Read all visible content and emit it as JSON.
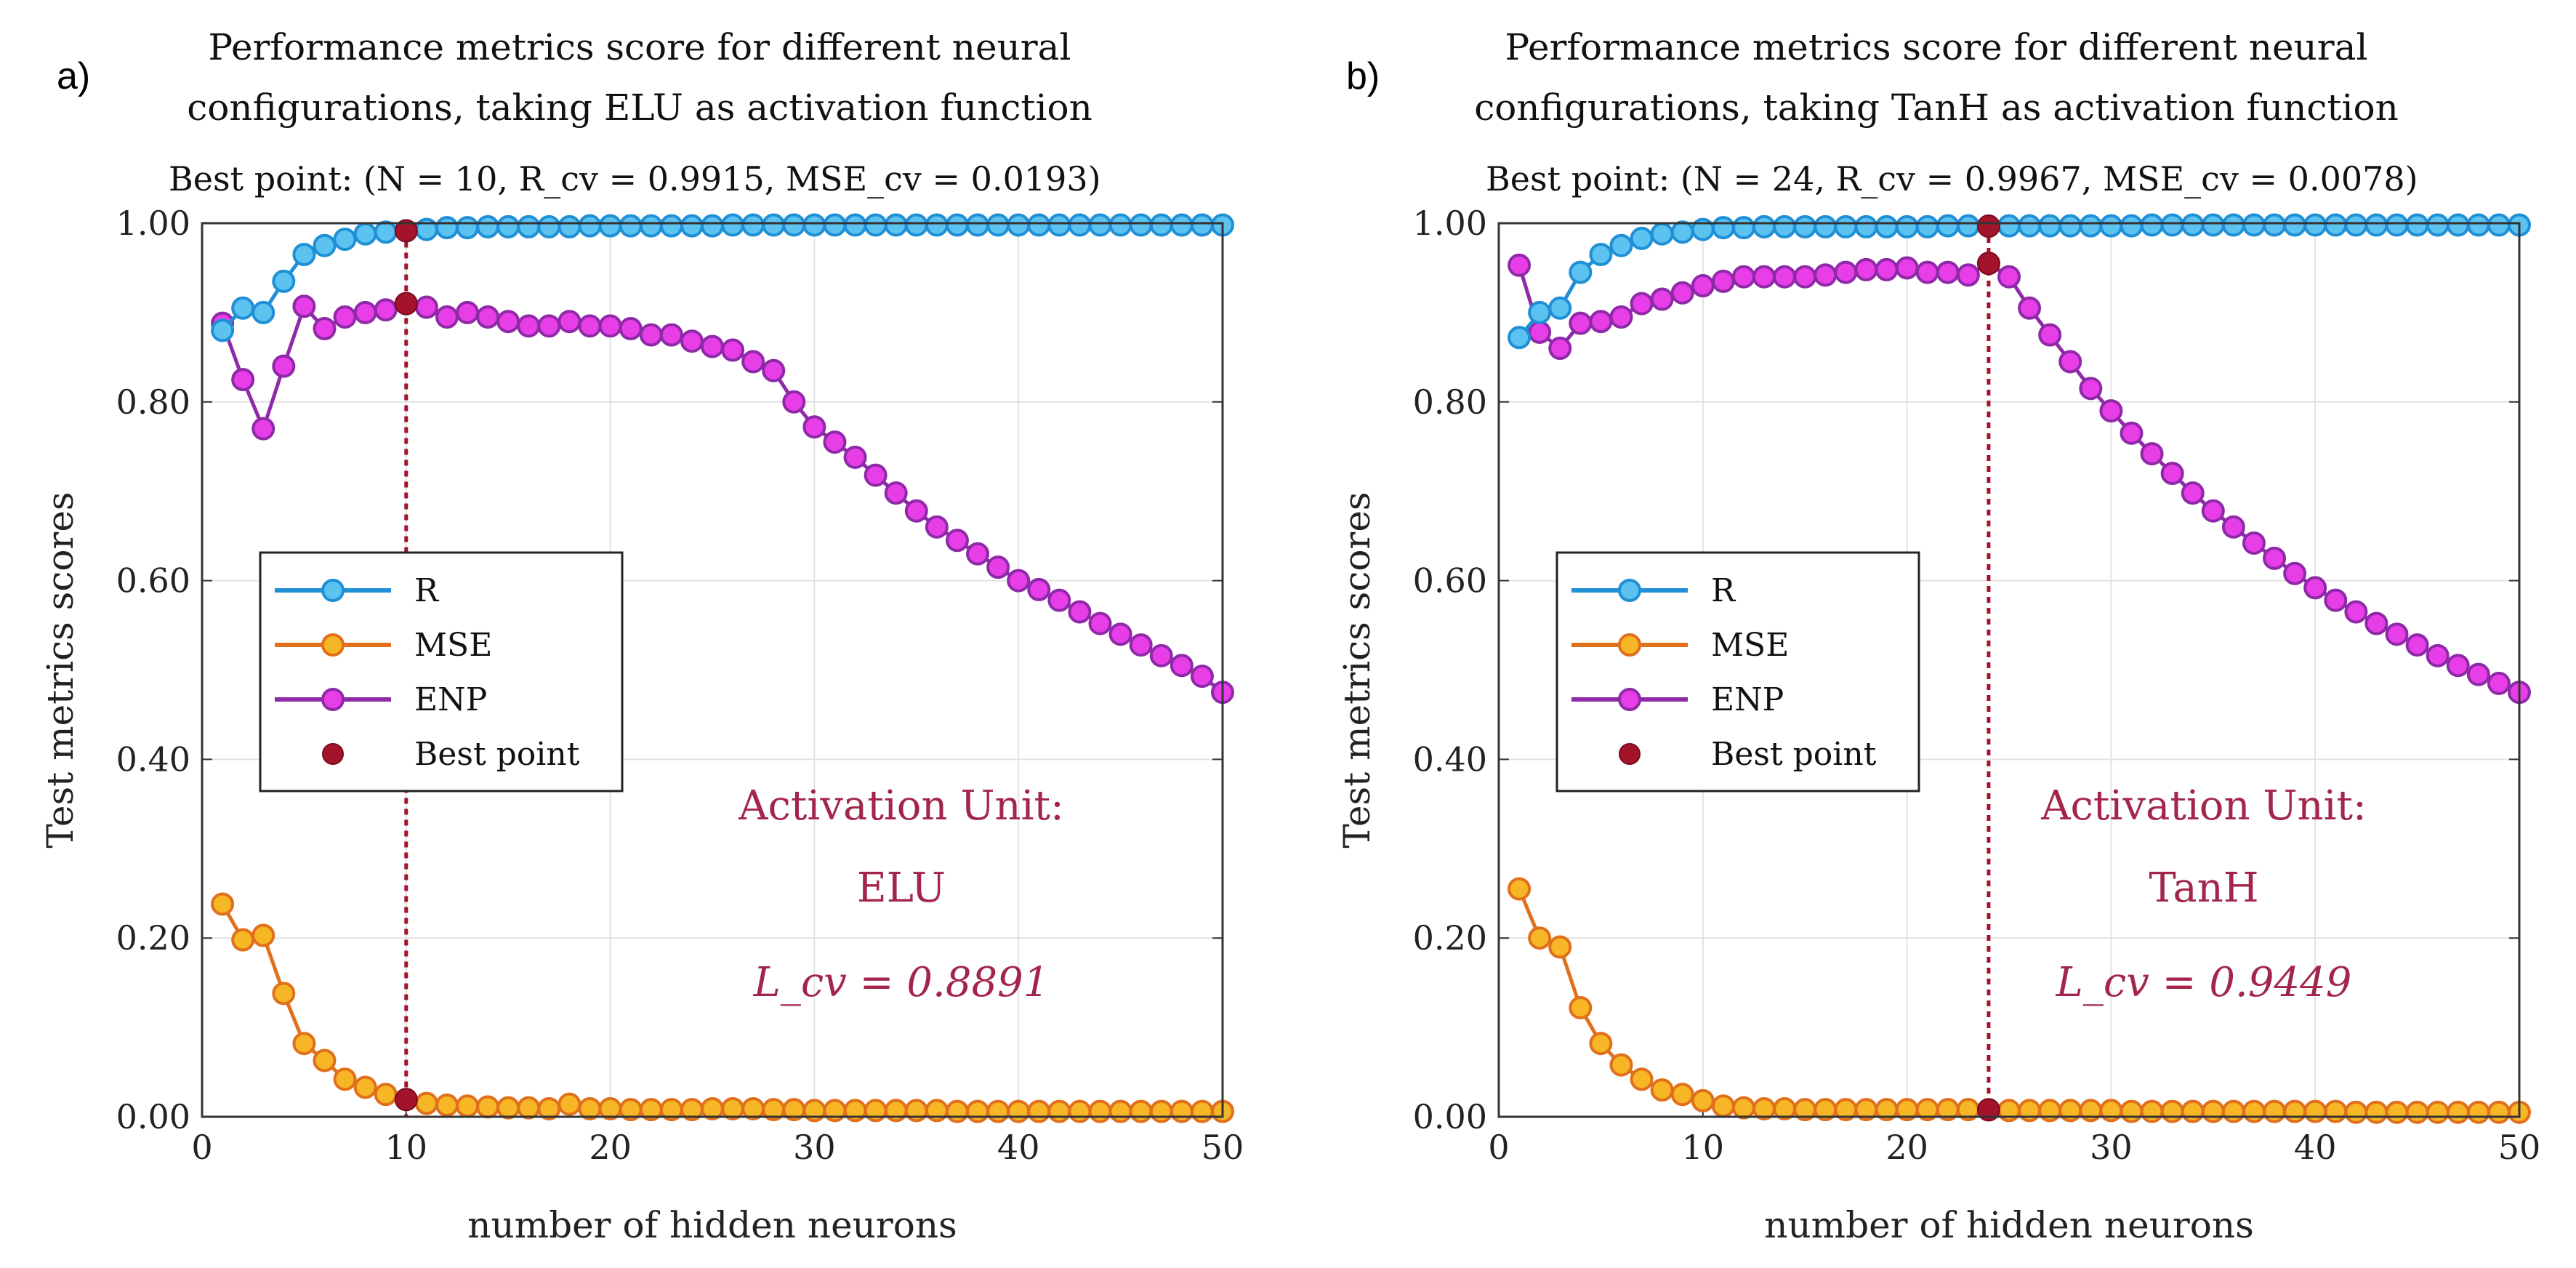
{
  "colors": {
    "R": "#1f8fd6",
    "R_marker": "#5cc2f0",
    "MSE": "#e0701c",
    "MSE_marker": "#f6b626",
    "ENP": "#8e2aa8",
    "ENP_marker": "#e83ee8",
    "best": "#a3142a",
    "annotation": "#a3264a"
  },
  "chart_data": [
    {
      "type": "line",
      "panel_label": "a)",
      "title_line1": "Performance metrics score for different neural",
      "title_line2": "configurations, taking ELU as activation function",
      "best_point_label": "Best point:  (N = 10, R_cv = 0.9915, MSE_cv = 0.0193)",
      "xlabel": "number of hidden neurons",
      "ylabel": "Test metrics scores",
      "xlim": [
        0,
        50
      ],
      "ylim": [
        0,
        1
      ],
      "xticks": [
        0,
        10,
        20,
        30,
        40,
        50
      ],
      "xtick_labels": [
        "0",
        "10",
        "20",
        "30",
        "40",
        "50"
      ],
      "yticks": [
        0,
        0.2,
        0.4,
        0.6,
        0.8,
        1.0
      ],
      "ytick_labels": [
        "0.00",
        "0.20",
        "0.40",
        "0.60",
        "0.80",
        "1.00"
      ],
      "grid": true,
      "legend": [
        "R",
        "MSE",
        "ENP",
        "Best point"
      ],
      "legend_position": "middle-left",
      "annotation": {
        "line1": "Activation Unit:",
        "line2": "ELU",
        "line3": "L_cv = 0.8891"
      },
      "best_point": {
        "x": 10,
        "values": [
          0.9915,
          0.91,
          0.0193
        ]
      },
      "x": [
        1,
        2,
        3,
        4,
        5,
        6,
        7,
        8,
        9,
        10,
        11,
        12,
        13,
        14,
        15,
        16,
        17,
        18,
        19,
        20,
        21,
        22,
        23,
        24,
        25,
        26,
        27,
        28,
        29,
        30,
        31,
        32,
        33,
        34,
        35,
        36,
        37,
        38,
        39,
        40,
        41,
        42,
        43,
        44,
        45,
        46,
        47,
        48,
        49,
        50
      ],
      "series": [
        {
          "name": "R",
          "values": [
            0.88,
            0.905,
            0.9,
            0.935,
            0.965,
            0.975,
            0.982,
            0.988,
            0.99,
            0.9915,
            0.993,
            0.995,
            0.995,
            0.996,
            0.996,
            0.996,
            0.996,
            0.996,
            0.997,
            0.997,
            0.997,
            0.997,
            0.997,
            0.997,
            0.997,
            0.998,
            0.998,
            0.998,
            0.998,
            0.998,
            0.998,
            0.998,
            0.998,
            0.998,
            0.998,
            0.998,
            0.998,
            0.998,
            0.998,
            0.998,
            0.998,
            0.998,
            0.998,
            0.998,
            0.998,
            0.998,
            0.998,
            0.998,
            0.998,
            0.998
          ]
        },
        {
          "name": "MSE",
          "values": [
            0.238,
            0.198,
            0.203,
            0.138,
            0.082,
            0.063,
            0.042,
            0.033,
            0.025,
            0.0193,
            0.015,
            0.013,
            0.012,
            0.011,
            0.01,
            0.01,
            0.009,
            0.014,
            0.009,
            0.009,
            0.008,
            0.008,
            0.008,
            0.008,
            0.009,
            0.009,
            0.009,
            0.008,
            0.008,
            0.007,
            0.007,
            0.007,
            0.007,
            0.007,
            0.007,
            0.007,
            0.006,
            0.006,
            0.006,
            0.006,
            0.006,
            0.006,
            0.006,
            0.006,
            0.006,
            0.006,
            0.006,
            0.006,
            0.006,
            0.006
          ]
        },
        {
          "name": "ENP",
          "values": [
            0.888,
            0.825,
            0.77,
            0.84,
            0.907,
            0.882,
            0.895,
            0.9,
            0.903,
            0.91,
            0.906,
            0.895,
            0.9,
            0.895,
            0.89,
            0.885,
            0.885,
            0.89,
            0.885,
            0.885,
            0.882,
            0.875,
            0.875,
            0.868,
            0.862,
            0.858,
            0.845,
            0.835,
            0.8,
            0.772,
            0.755,
            0.738,
            0.718,
            0.698,
            0.678,
            0.66,
            0.645,
            0.63,
            0.615,
            0.6,
            0.59,
            0.578,
            0.565,
            0.552,
            0.54,
            0.528,
            0.516,
            0.505,
            0.493,
            0.475
          ]
        }
      ]
    },
    {
      "type": "line",
      "panel_label": "b)",
      "title_line1": "Performance metrics score for different neural",
      "title_line2": "configurations, taking TanH as activation function",
      "best_point_label": "Best point:  (N = 24, R_cv = 0.9967, MSE_cv = 0.0078)",
      "xlabel": "number of hidden neurons",
      "ylabel": "Test metrics scores",
      "xlim": [
        0,
        50
      ],
      "ylim": [
        0,
        1
      ],
      "xticks": [
        0,
        10,
        20,
        30,
        40,
        50
      ],
      "xtick_labels": [
        "0",
        "10",
        "20",
        "30",
        "40",
        "50"
      ],
      "yticks": [
        0,
        0.2,
        0.4,
        0.6,
        0.8,
        1.0
      ],
      "ytick_labels": [
        "0.00",
        "0.20",
        "0.40",
        "0.60",
        "0.80",
        "1.00"
      ],
      "grid": true,
      "legend": [
        "R",
        "MSE",
        "ENP",
        "Best point"
      ],
      "legend_position": "middle-left",
      "annotation": {
        "line1": "Activation Unit:",
        "line2": "TanH",
        "line3": "L_cv = 0.9449"
      },
      "best_point": {
        "x": 24,
        "values": [
          0.9967,
          0.955,
          0.0078
        ]
      },
      "x": [
        1,
        2,
        3,
        4,
        5,
        6,
        7,
        8,
        9,
        10,
        11,
        12,
        13,
        14,
        15,
        16,
        17,
        18,
        19,
        20,
        21,
        22,
        23,
        24,
        25,
        26,
        27,
        28,
        29,
        30,
        31,
        32,
        33,
        34,
        35,
        36,
        37,
        38,
        39,
        40,
        41,
        42,
        43,
        44,
        45,
        46,
        47,
        48,
        49,
        50
      ],
      "series": [
        {
          "name": "R",
          "values": [
            0.872,
            0.9,
            0.905,
            0.945,
            0.965,
            0.975,
            0.983,
            0.988,
            0.99,
            0.993,
            0.995,
            0.995,
            0.996,
            0.996,
            0.996,
            0.996,
            0.996,
            0.996,
            0.996,
            0.996,
            0.996,
            0.997,
            0.997,
            0.9967,
            0.997,
            0.997,
            0.997,
            0.997,
            0.997,
            0.997,
            0.997,
            0.998,
            0.998,
            0.998,
            0.998,
            0.998,
            0.998,
            0.998,
            0.998,
            0.998,
            0.998,
            0.998,
            0.998,
            0.998,
            0.998,
            0.998,
            0.998,
            0.998,
            0.998,
            0.998
          ]
        },
        {
          "name": "MSE",
          "values": [
            0.255,
            0.2,
            0.19,
            0.122,
            0.082,
            0.058,
            0.042,
            0.03,
            0.025,
            0.018,
            0.012,
            0.01,
            0.009,
            0.009,
            0.008,
            0.008,
            0.008,
            0.008,
            0.008,
            0.008,
            0.008,
            0.008,
            0.008,
            0.0078,
            0.007,
            0.007,
            0.007,
            0.007,
            0.007,
            0.007,
            0.006,
            0.006,
            0.006,
            0.006,
            0.006,
            0.006,
            0.006,
            0.006,
            0.006,
            0.006,
            0.006,
            0.005,
            0.005,
            0.005,
            0.005,
            0.005,
            0.005,
            0.005,
            0.005,
            0.005
          ]
        },
        {
          "name": "ENP",
          "values": [
            0.953,
            0.878,
            0.86,
            0.888,
            0.89,
            0.895,
            0.91,
            0.915,
            0.922,
            0.93,
            0.935,
            0.94,
            0.94,
            0.94,
            0.94,
            0.942,
            0.945,
            0.948,
            0.948,
            0.95,
            0.945,
            0.945,
            0.942,
            0.955,
            0.94,
            0.905,
            0.875,
            0.845,
            0.815,
            0.79,
            0.765,
            0.742,
            0.72,
            0.698,
            0.678,
            0.66,
            0.642,
            0.625,
            0.608,
            0.592,
            0.578,
            0.565,
            0.552,
            0.54,
            0.528,
            0.516,
            0.505,
            0.495,
            0.485,
            0.475
          ]
        }
      ]
    }
  ]
}
